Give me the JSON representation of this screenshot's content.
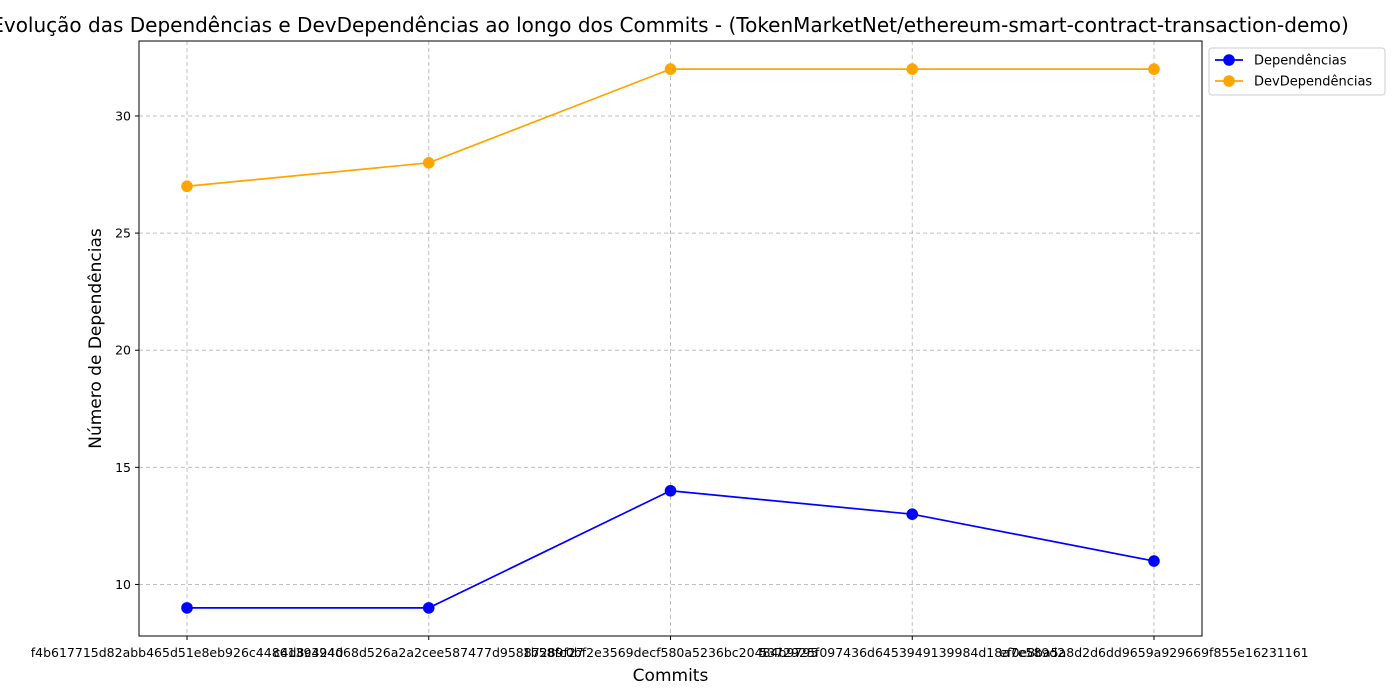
{
  "chart_data": {
    "type": "line",
    "title": "Evolução das Dependências e DevDependências ao longo dos Commits - (TokenMarketNet/ethereum-smart-contract-transaction-demo)",
    "xlabel": "Commits",
    "ylabel": "Número de Dependências",
    "categories": [
      "f4b617715d82abb465d51e8eb926c44861394240",
      "c4d8c394d68d526a2a2cee587477d95887289f27",
      "1b58fc0bf2e3569decf580a5236bc20484b9795",
      "5372925f097436d6453949139984d18a7e589d2",
      "ef0e8ba5a8d2d6dd9659a929669f855e16231161"
    ],
    "ylim": [
      7.8,
      33.2
    ],
    "yticks": [
      10,
      15,
      20,
      25,
      30
    ],
    "grid": true,
    "legend_position": "top-right-outside",
    "series": [
      {
        "name": "Dependências",
        "color": "#0000ff",
        "values": [
          9,
          9,
          14,
          13,
          11
        ]
      },
      {
        "name": "DevDependências",
        "color": "#ffa500",
        "values": [
          27,
          28,
          32,
          32,
          32
        ]
      }
    ]
  }
}
